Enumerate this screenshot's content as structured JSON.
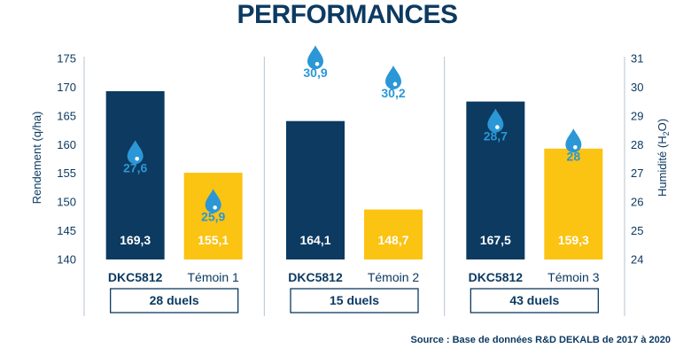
{
  "chart_data": {
    "type": "bar",
    "title": "PERFORMANCES",
    "ylabel": "Rendement (q/ha)",
    "y2label_prefix": "Humidité (H",
    "y2label_sub": "2",
    "y2label_suffix": "O)",
    "ylim": [
      140,
      175
    ],
    "y2lim": [
      24,
      31
    ],
    "yticks": [
      "140",
      "145",
      "150",
      "155",
      "160",
      "165",
      "170",
      "175"
    ],
    "y2ticks": [
      "24",
      "25",
      "26",
      "27",
      "28",
      "29",
      "30",
      "31"
    ],
    "groups": [
      {
        "duel_label": "28 duels",
        "bars": [
          {
            "name": "DKC5812",
            "kind": "dkc",
            "value": 169.3,
            "value_label": "169,3",
            "humidity": 27.6,
            "humidity_label": "27,6"
          },
          {
            "name": "Témoin 1",
            "kind": "temoin",
            "value": 155.1,
            "value_label": "155,1",
            "humidity": 25.9,
            "humidity_label": "25,9"
          }
        ]
      },
      {
        "duel_label": "15 duels",
        "bars": [
          {
            "name": "DKC5812",
            "kind": "dkc",
            "value": 164.1,
            "value_label": "164,1",
            "humidity": 30.9,
            "humidity_label": "30,9"
          },
          {
            "name": "Témoin 2",
            "kind": "temoin",
            "value": 148.7,
            "value_label": "148,7",
            "humidity": 30.2,
            "humidity_label": "30,2"
          }
        ]
      },
      {
        "duel_label": "43 duels",
        "bars": [
          {
            "name": "DKC5812",
            "kind": "dkc",
            "value": 167.5,
            "value_label": "167,5",
            "humidity": 28.7,
            "humidity_label": "28,7"
          },
          {
            "name": "Témoin 3",
            "kind": "temoin",
            "value": 159.3,
            "value_label": "159,3",
            "humidity": 28.0,
            "humidity_label": "28"
          }
        ]
      }
    ],
    "source": "Source : Base de données R&D DEKALB de 2017 à 2020",
    "colors": {
      "dkc": "#0c3a61",
      "temoin": "#fbc312",
      "drop": "#2b97d6",
      "text": "#0c3a61",
      "grid": "#b7c3cf"
    }
  }
}
